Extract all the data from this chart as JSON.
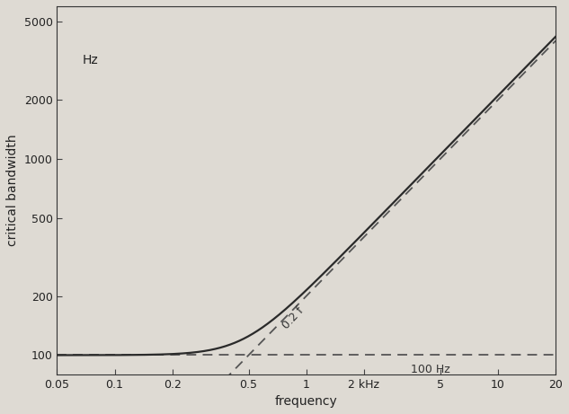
{
  "xlabel": "frequency",
  "ylabel": "critical bandwidth",
  "xlim": [
    0.05,
    20
  ],
  "ylim": [
    80,
    6000
  ],
  "xticks": [
    0.05,
    0.1,
    0.2,
    0.5,
    1,
    2,
    5,
    10,
    20
  ],
  "xticklabels": [
    "0.05",
    "0.1",
    "0.2",
    "0.5",
    "1",
    "2 kHz",
    "5",
    "10",
    "20"
  ],
  "yticks": [
    100,
    200,
    500,
    1000,
    2000,
    5000
  ],
  "yticklabels": [
    "100",
    "200",
    "500",
    "1000",
    "2000",
    "5000"
  ],
  "solid_color": "#2a2a2a",
  "dashed_color": "#555555",
  "background_color": "#dedad3",
  "label_100hz": "100 Hz",
  "label_02f": "0.2 f",
  "hz_label": "Hz",
  "fig_width": 6.33,
  "fig_height": 4.61,
  "dpi": 100
}
